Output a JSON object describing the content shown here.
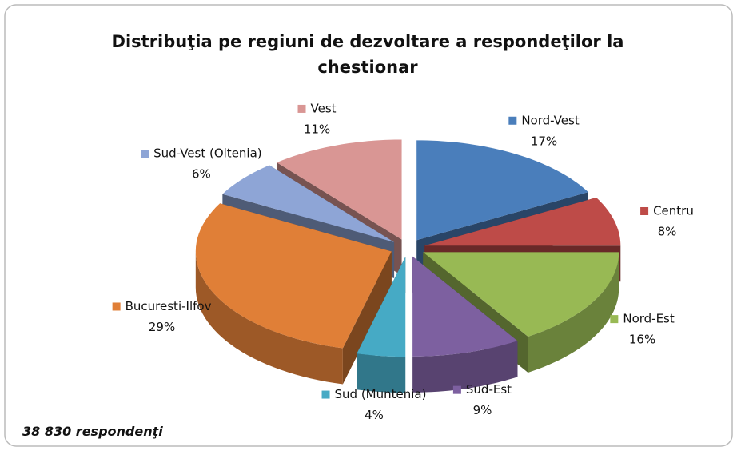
{
  "chart_data": {
    "type": "pie3d",
    "title": "Distribuţia pe regiuni de dezvoltare a respondeţilor  la chestionar",
    "categories": [
      "Nord-Vest",
      "Centru",
      "Nord-Est",
      "Sud-Est",
      "Sud (Muntenia)",
      "Bucuresti-Ilfov",
      "Sud-Vest (Oltenia)",
      "Vest"
    ],
    "values": [
      17,
      8,
      16,
      9,
      4,
      29,
      6,
      11
    ],
    "value_labels": [
      "17%",
      "8%",
      "16%",
      "9%",
      "4%",
      "29%",
      "6%",
      "11%"
    ],
    "colors": [
      "#4a7ebb",
      "#be4b48",
      "#98b954",
      "#7d60a0",
      "#46aac5",
      "#e07f37",
      "#8ea5d6",
      "#d99694"
    ],
    "annotation": "38 830 respondenţi"
  }
}
